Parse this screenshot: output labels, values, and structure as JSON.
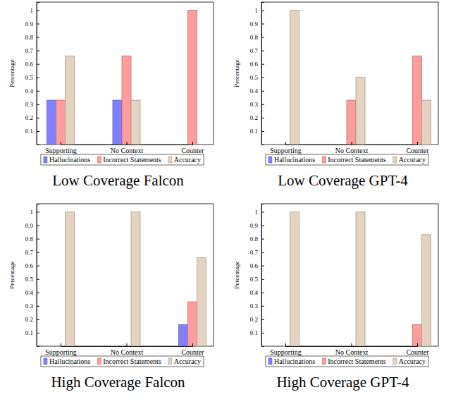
{
  "chart_data": [
    {
      "type": "bar",
      "title": "Low Coverage Falcon",
      "ylabel": "Percentage",
      "categories": [
        "Supporting",
        "No Context",
        "Counter"
      ],
      "series": [
        {
          "name": "Hallucinations",
          "color": "#8080ff",
          "values": [
            0.33,
            0.33,
            0
          ]
        },
        {
          "name": "Incorrect Statements",
          "color": "#ff9c9c",
          "values": [
            0.33,
            0.66,
            1
          ]
        },
        {
          "name": "Accuracy",
          "color": "#e3d3c0",
          "values": [
            0.66,
            0.33,
            0
          ]
        }
      ],
      "ylim": [
        0,
        1.06
      ],
      "yticks": [
        0.1,
        0.2,
        0.3,
        0.4,
        0.5,
        0.6,
        0.7,
        0.8,
        0.9,
        1
      ],
      "legend": "bottom"
    },
    {
      "type": "bar",
      "title": "Low Coverage GPT-4",
      "ylabel": "Percentage",
      "categories": [
        "Supporting",
        "No Context",
        "Counter"
      ],
      "series": [
        {
          "name": "Hallucinations",
          "color": "#8080ff",
          "values": [
            0,
            0,
            0
          ]
        },
        {
          "name": "Incorrect Statements",
          "color": "#ff9c9c",
          "values": [
            0,
            0.33,
            0.66
          ]
        },
        {
          "name": "Accuracy",
          "color": "#e3d3c0",
          "values": [
            1,
            0.5,
            0.33
          ]
        }
      ],
      "ylim": [
        0,
        1.06
      ],
      "yticks": [
        0.1,
        0.2,
        0.3,
        0.4,
        0.5,
        0.6,
        0.7,
        0.8,
        0.9,
        1
      ],
      "legend": "bottom"
    },
    {
      "type": "bar",
      "title": "High Coverage Falcon",
      "ylabel": "Percentage",
      "categories": [
        "Supporting",
        "No Context",
        "Counter"
      ],
      "series": [
        {
          "name": "Hallucinations",
          "color": "#8080ff",
          "values": [
            0,
            0,
            0.16
          ]
        },
        {
          "name": "Incorrect Statements",
          "color": "#ff9c9c",
          "values": [
            0,
            0,
            0.33
          ]
        },
        {
          "name": "Accuracy",
          "color": "#e3d3c0",
          "values": [
            1,
            1,
            0.66
          ]
        }
      ],
      "ylim": [
        0,
        1.06
      ],
      "yticks": [
        0.1,
        0.2,
        0.3,
        0.4,
        0.5,
        0.6,
        0.7,
        0.8,
        0.9,
        1
      ],
      "legend": "bottom"
    },
    {
      "type": "bar",
      "title": "High Coverage GPT-4",
      "ylabel": "Percentage",
      "categories": [
        "Supporting",
        "No Context",
        "Counter"
      ],
      "series": [
        {
          "name": "Hallucinations",
          "color": "#8080ff",
          "values": [
            0,
            0,
            0
          ]
        },
        {
          "name": "Incorrect Statements",
          "color": "#ff9c9c",
          "values": [
            0,
            0,
            0.16
          ]
        },
        {
          "name": "Accuracy",
          "color": "#e3d3c0",
          "values": [
            1,
            1,
            0.83
          ]
        }
      ],
      "ylim": [
        0,
        1.06
      ],
      "yticks": [
        0.1,
        0.2,
        0.3,
        0.4,
        0.5,
        0.6,
        0.7,
        0.8,
        0.9,
        1
      ],
      "legend": "bottom"
    }
  ]
}
